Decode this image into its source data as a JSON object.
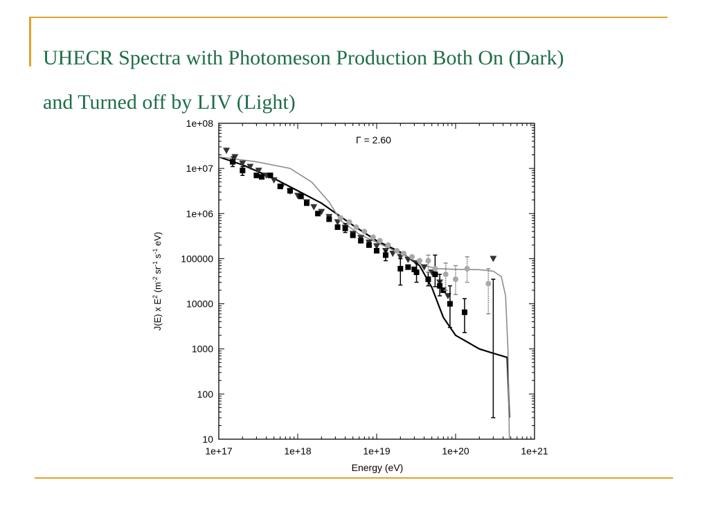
{
  "slide": {
    "title_line1": "UHECR Spectra with Photomeson Production Both On (Dark)",
    "title_line2": "and Turned off by LIV (Light)"
  },
  "colors": {
    "accent": "#e4a32b",
    "title": "#1e6e46",
    "dark": "#000000",
    "light": "#8c8c8c"
  },
  "chart_data": {
    "type": "scatter",
    "annotation": "Γ = 2.60",
    "xlabel": "Energy (eV)",
    "ylabel": "J(E) x E^2 (m^-2 sr^-1 s^-1 eV)",
    "x_scale": "log",
    "y_scale": "log",
    "xlim": [
      1e+17,
      1e+21
    ],
    "ylim": [
      10,
      100000000.0
    ],
    "x_tick_labels": [
      "1e+17",
      "1e+18",
      "1e+19",
      "1e+20",
      "1e+21"
    ],
    "y_tick_labels": [
      "1e+08",
      "1e+07",
      "1e+06",
      "100000",
      "10000",
      "1000",
      "100",
      "10"
    ],
    "series": [
      {
        "kind": "curve",
        "shade": "dark",
        "points": [
          [
            1e+17,
            18000000.0
          ],
          [
            2e+17,
            12000000.0
          ],
          [
            5e+17,
            6000000.0
          ],
          [
            1e+18,
            3200000.0
          ],
          [
            2e+18,
            1700000.0
          ],
          [
            5e+18,
            550000.0
          ],
          [
            1e+19,
            250000.0
          ],
          [
            2e+19,
            140000.0
          ],
          [
            3.5e+19,
            70000.0
          ],
          [
            5e+19,
            23000.0
          ],
          [
            7e+19,
            5000.0
          ],
          [
            1e+20,
            2000.0
          ],
          [
            2e+20,
            1000.0
          ],
          [
            3e+20,
            800
          ],
          [
            4.5e+20,
            650
          ],
          [
            4.7e+20,
            100
          ],
          [
            4.8e+20,
            30
          ]
        ]
      },
      {
        "kind": "curve",
        "shade": "light",
        "points": [
          [
            1e+17,
            18000000.0
          ],
          [
            3e+17,
            14000000.0
          ],
          [
            8e+17,
            10000000.0
          ],
          [
            1.5e+18,
            5000000.0
          ],
          [
            2.5e+18,
            1800000.0
          ],
          [
            3.5e+18,
            700000.0
          ],
          [
            6e+18,
            350000.0
          ],
          [
            1e+19,
            230000.0
          ],
          [
            2e+19,
            130000.0
          ],
          [
            4e+19,
            70000.0
          ],
          [
            6e+19,
            60000.0
          ],
          [
            1e+20,
            58000.0
          ],
          [
            2e+20,
            57000.0
          ],
          [
            3e+20,
            53000.0
          ],
          [
            3.8e+20,
            40000.0
          ],
          [
            4.3e+20,
            15000.0
          ],
          [
            4.6e+20,
            1000.0
          ],
          [
            4.8e+20,
            10
          ]
        ]
      },
      {
        "kind": "points",
        "shade": "dark",
        "marker": "triangle-down",
        "points": [
          [
            1.25e+17,
            25000000.0,
            0,
            0
          ],
          [
            1.6e+17,
            18000000.0,
            0,
            0
          ],
          [
            2e+17,
            13000000.0,
            0,
            0
          ],
          [
            2.5e+17,
            11000000.0,
            0,
            0
          ],
          [
            3.2e+17,
            9000000.0,
            0,
            0
          ],
          [
            4e+17,
            7000000.0,
            0,
            0
          ],
          [
            5e+17,
            5500000.0,
            0,
            0
          ],
          [
            6.3e+17,
            4000000.0,
            0,
            0
          ],
          [
            8e+17,
            3100000.0,
            0,
            0
          ],
          [
            1e+18,
            2500000.0,
            0,
            0
          ],
          [
            1.3e+18,
            1800000.0,
            0,
            0
          ],
          [
            1.6e+18,
            1400000.0,
            0,
            0
          ],
          [
            2e+18,
            1100000.0,
            0,
            0
          ],
          [
            2.5e+18,
            850000.0,
            0,
            0
          ],
          [
            3.2e+18,
            650000.0,
            0,
            0
          ],
          [
            4e+18,
            490000.0,
            0,
            0
          ],
          [
            5e+18,
            360000.0,
            0,
            0
          ],
          [
            6.3e+18,
            290000.0,
            0,
            0
          ],
          [
            8e+18,
            230000.0,
            0,
            0
          ],
          [
            1e+19,
            190000.0,
            0,
            0
          ],
          [
            1.3e+19,
            150000.0,
            0,
            0
          ],
          [
            1.6e+19,
            130000.0,
            0,
            0
          ],
          [
            2e+19,
            110000.0,
            0,
            0
          ],
          [
            2.5e+19,
            95000.0,
            0,
            0
          ],
          [
            3.2e+19,
            80000.0,
            0,
            0
          ],
          [
            4e+19,
            65000.0,
            0,
            0
          ],
          [
            5e+19,
            50000.0,
            0,
            0
          ],
          [
            6.3e+19,
            30000.0,
            0,
            0
          ],
          [
            8e+19,
            15000.0,
            0,
            0
          ],
          [
            3e+20,
            100000.0,
            35000.0,
            30
          ]
        ]
      },
      {
        "kind": "points",
        "shade": "dark",
        "marker": "square",
        "points": [
          [
            1.5e+17,
            14000000.0,
            18000000.0,
            11000000.0
          ],
          [
            2e+17,
            9000000.0,
            11000000.0,
            7000000.0
          ],
          [
            3e+17,
            7000000.0,
            0,
            0
          ],
          [
            3.5e+17,
            6500000.0,
            0,
            0
          ],
          [
            4.5e+17,
            7000000.0,
            0,
            0
          ],
          [
            6e+17,
            4000000.0,
            0,
            0
          ],
          [
            8e+17,
            3200000.0,
            0,
            0
          ],
          [
            1.1e+18,
            2400000.0,
            0,
            0
          ],
          [
            1.3e+18,
            1700000.0,
            0,
            0
          ],
          [
            1.8e+18,
            1000000.0,
            0,
            0
          ],
          [
            2.5e+18,
            750000.0,
            0,
            0
          ],
          [
            3.2e+18,
            500000.0,
            0,
            0
          ],
          [
            4e+18,
            470000.0,
            600000.0,
            380000.0
          ],
          [
            5e+18,
            330000.0,
            0,
            0
          ],
          [
            6.3e+18,
            250000.0,
            0,
            0
          ],
          [
            8e+18,
            200000.0,
            0,
            0
          ],
          [
            1e+19,
            150000.0,
            0,
            0
          ],
          [
            1.3e+19,
            120000.0,
            150000.0,
            90000.0
          ],
          [
            2e+19,
            60000.0,
            100000.0,
            26000.0
          ],
          [
            2.5e+19,
            65000.0,
            0,
            0
          ],
          [
            3e+19,
            58000.0,
            0,
            0
          ],
          [
            3.2e+19,
            50000.0,
            80000.0,
            30000.0
          ],
          [
            4.5e+19,
            35000.0,
            50000.0,
            25000.0
          ],
          [
            5.5e+19,
            45000.0,
            120000.0,
            24000.0
          ],
          [
            6.3e+19,
            25000.0,
            45000.0,
            15000.0
          ],
          [
            7e+19,
            20000.0,
            0,
            0
          ],
          [
            8.5e+19,
            10000.0,
            25000.0,
            3000.0
          ],
          [
            1.3e+20,
            6500.0,
            13000.0,
            2300.0
          ]
        ]
      },
      {
        "kind": "points",
        "shade": "light",
        "marker": "circle",
        "points": [
          [
            3.5e+18,
            800000.0,
            0,
            0
          ],
          [
            4.5e+18,
            650000.0,
            0,
            0
          ],
          [
            5.5e+18,
            500000.0,
            0,
            0
          ],
          [
            7e+18,
            400000.0,
            0,
            0
          ],
          [
            9e+18,
            300000.0,
            0,
            0
          ],
          [
            1.1e+19,
            250000.0,
            0,
            0
          ],
          [
            1.4e+19,
            200000.0,
            0,
            0
          ],
          [
            1.8e+19,
            150000.0,
            0,
            0
          ],
          [
            2.2e+19,
            130000.0,
            0,
            0
          ],
          [
            2.8e+19,
            110000.0,
            0,
            0
          ],
          [
            3.5e+19,
            90000.0,
            0,
            0
          ],
          [
            4.5e+19,
            90000.0,
            120000.0,
            50000.0
          ],
          [
            5.5e+19,
            60000.0,
            0,
            0
          ],
          [
            7.5e+19,
            45000.0,
            80000.0,
            20000.0
          ],
          [
            1e+20,
            35000.0,
            70000.0,
            16000.0
          ],
          [
            1.4e+20,
            60000.0,
            110000.0,
            30000.0
          ],
          [
            2.6e+20,
            28000.0,
            60000.0,
            6000.0
          ]
        ]
      }
    ]
  }
}
